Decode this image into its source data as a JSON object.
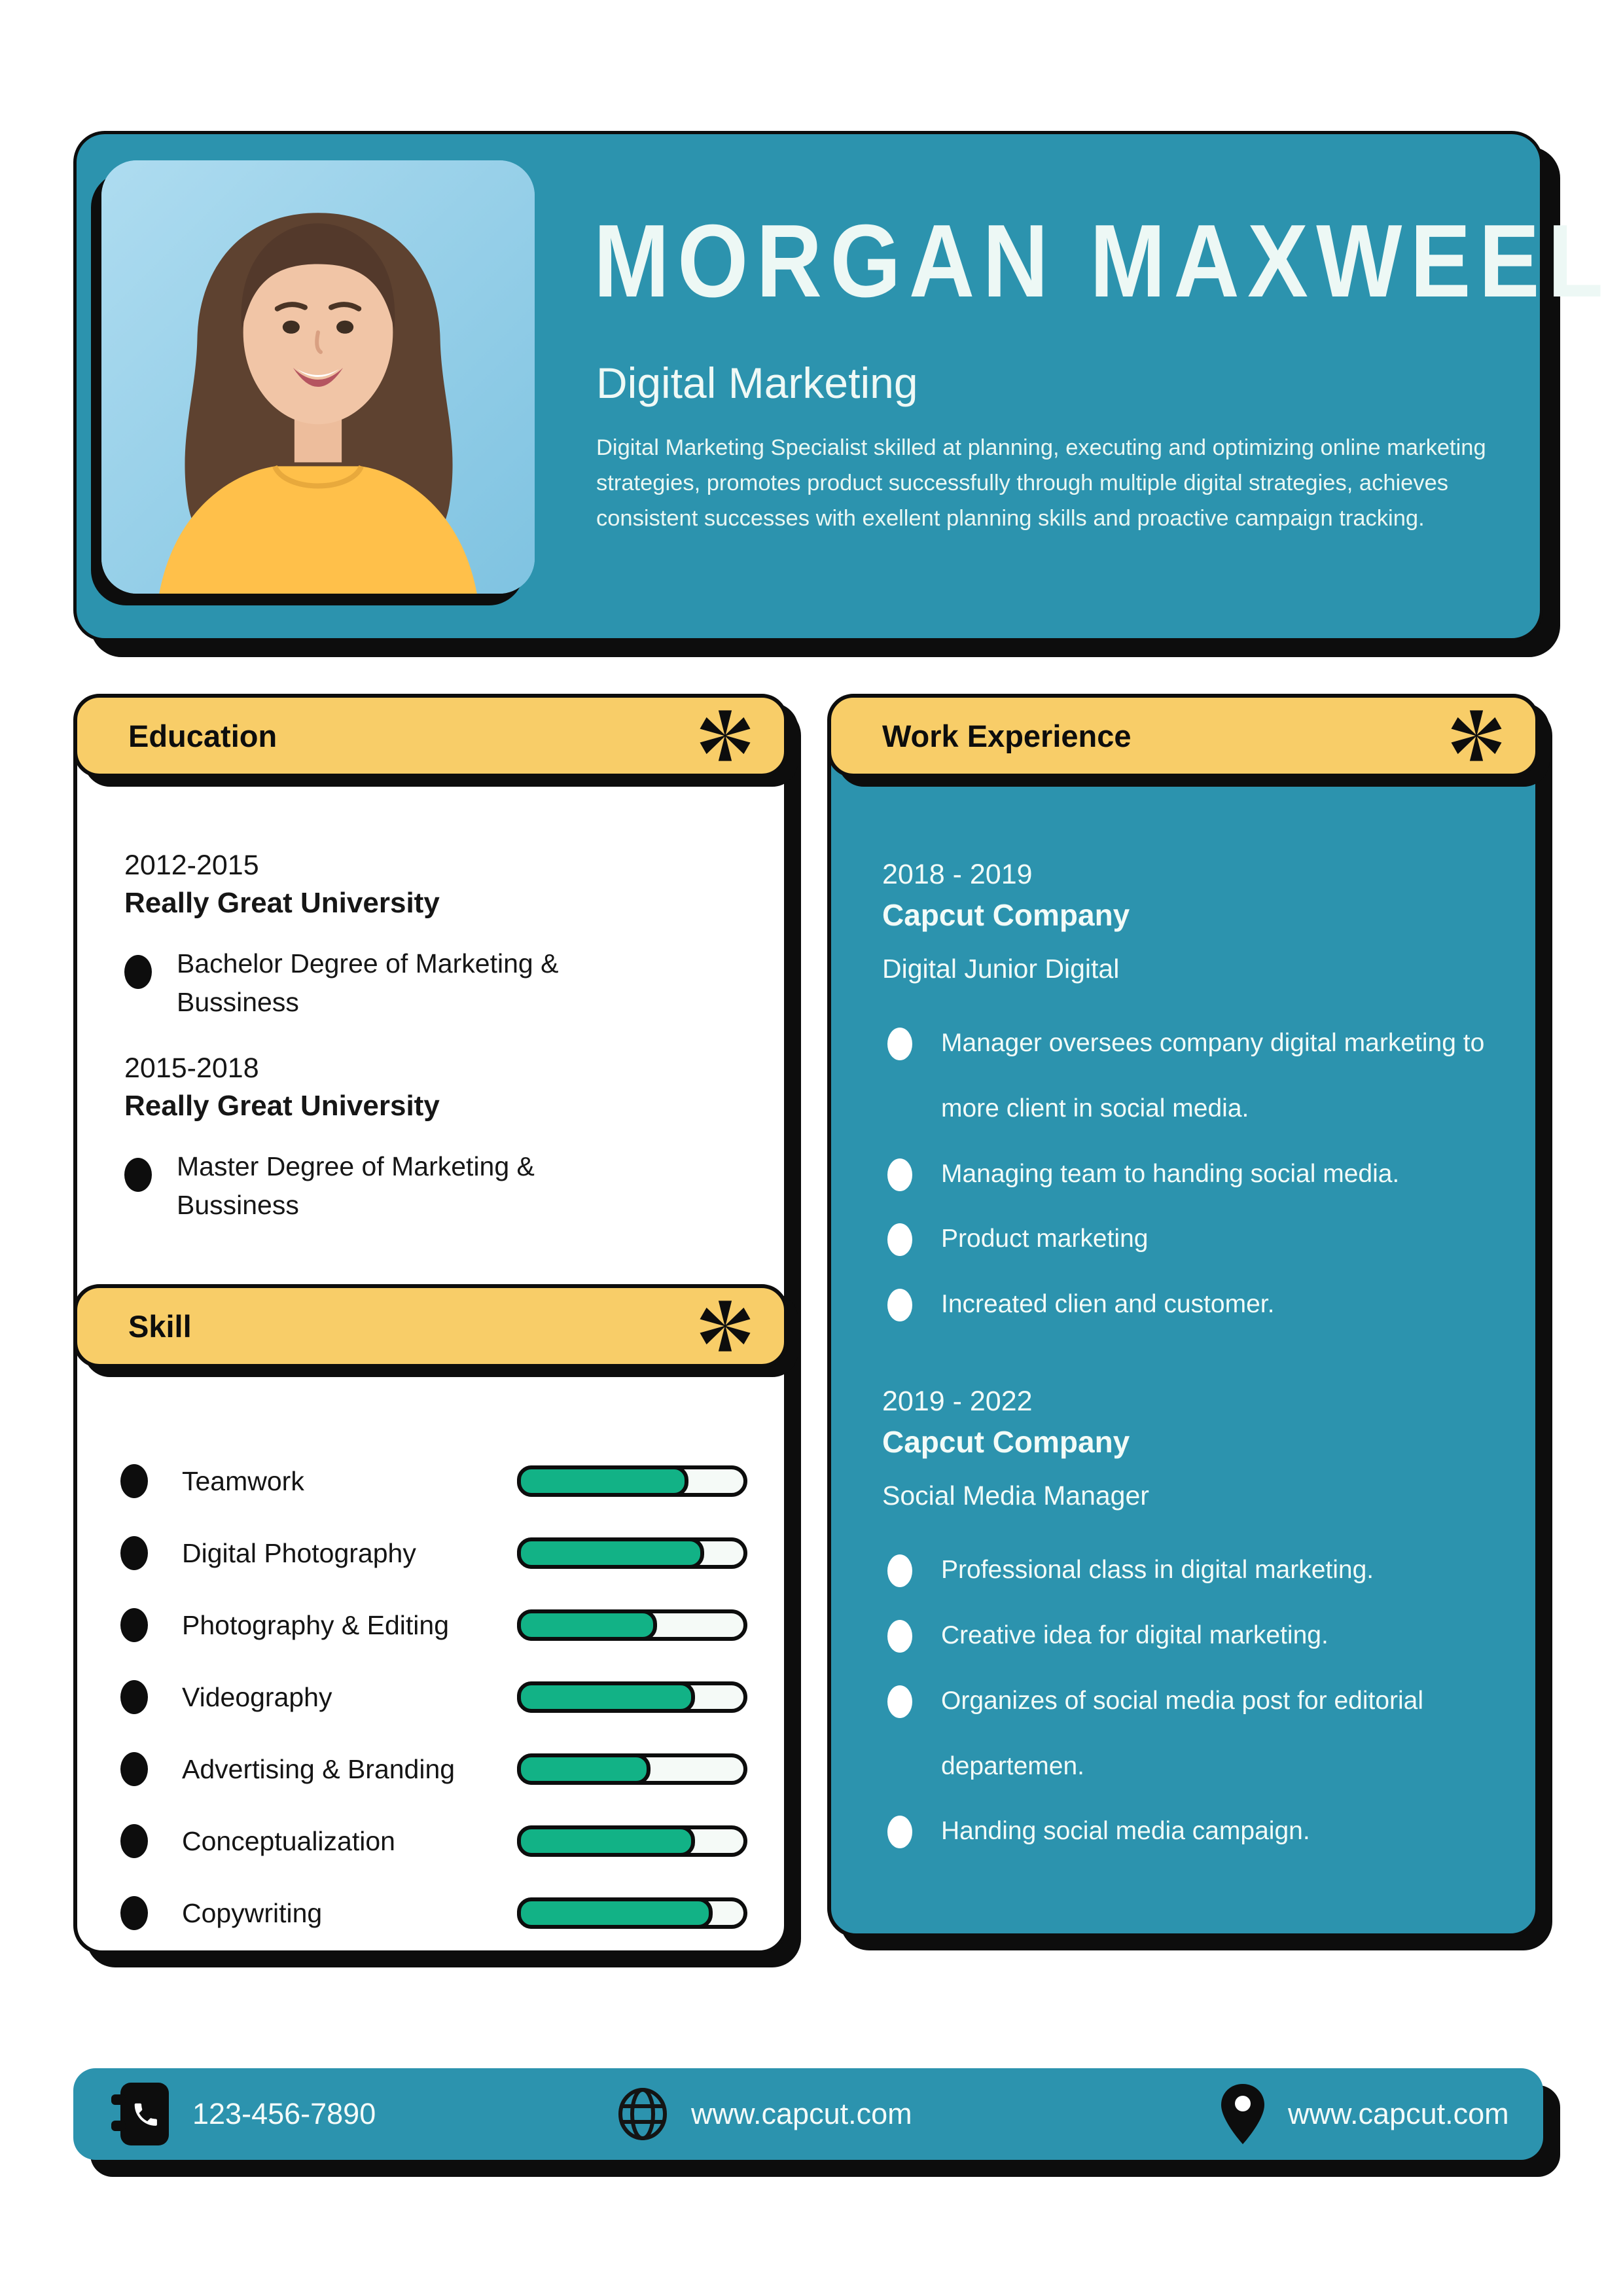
{
  "colors": {
    "teal": "#2C93AE",
    "yellow": "#F8CD68",
    "green": "#12B286",
    "black": "#0d0d0d",
    "track": "#F5FAF7",
    "photo_bg_light": "#AEDCF0",
    "photo_bg_dark": "#7FC3E1"
  },
  "icons": {
    "section_marker": "asterisk-icon",
    "phone": "phone-icon",
    "website": "globe-icon",
    "address": "map-pin-icon"
  },
  "header": {
    "name": "MORGAN MAXWEEL",
    "title": "Digital Marketing",
    "description": "Digital Marketing Specialist skilled at planning, executing and optimizing online marketing strategies, promotes product successfully through multiple digital strategies, achieves consistent successes with exellent planning skills and proactive campaign tracking."
  },
  "education": {
    "heading": "Education",
    "items": [
      {
        "years": "2012-2015",
        "school": "Really Great University",
        "degree": "Bachelor Degree of Marketing & Bussiness"
      },
      {
        "years": "2015-2018",
        "school": "Really Great University",
        "degree": "Master Degree of Marketing & Bussiness"
      }
    ]
  },
  "skills": {
    "heading": "Skill",
    "items": [
      {
        "label": "Teamwork",
        "percent": 77
      },
      {
        "label": "Digital Photography",
        "percent": 84
      },
      {
        "label": "Photography & Editing",
        "percent": 63
      },
      {
        "label": "Videography",
        "percent": 80
      },
      {
        "label": "Advertising & Branding",
        "percent": 60
      },
      {
        "label": "Conceptualization",
        "percent": 80
      },
      {
        "label": "Copywriting",
        "percent": 88
      }
    ]
  },
  "work_experience": {
    "heading": "Work Experience",
    "jobs": [
      {
        "years": "2018 - 2019",
        "company": "Capcut Company",
        "role": "Digital Junior Digital",
        "bullets": [
          "Manager oversees company digital marketing to more client in social media.",
          "Managing team to handing social media.",
          "Product marketing",
          "Increated clien and customer."
        ]
      },
      {
        "years": "2019 - 2022",
        "company": "Capcut Company",
        "role": "Social Media Manager",
        "bullets": [
          "Professional class in digital marketing.",
          "Creative idea for digital marketing.",
          "Organizes of social media post for editorial departemen.",
          "Handing social media campaign."
        ]
      }
    ]
  },
  "footer": {
    "phone": "123-456-7890",
    "website": "www.capcut.com",
    "address": "www.capcut.com"
  }
}
